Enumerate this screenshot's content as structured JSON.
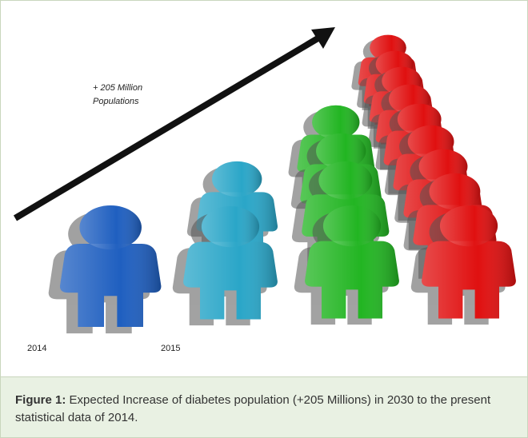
{
  "figure": {
    "annotation": [
      "+ 205 Million",
      "Populations"
    ],
    "year_labels": [
      "2014",
      "2015"
    ]
  },
  "caption": {
    "label": "Figure 1:",
    "text": "Expected Increase of diabetes population (+205 Millions) in 2030 to the present statistical data of 2014."
  }
}
